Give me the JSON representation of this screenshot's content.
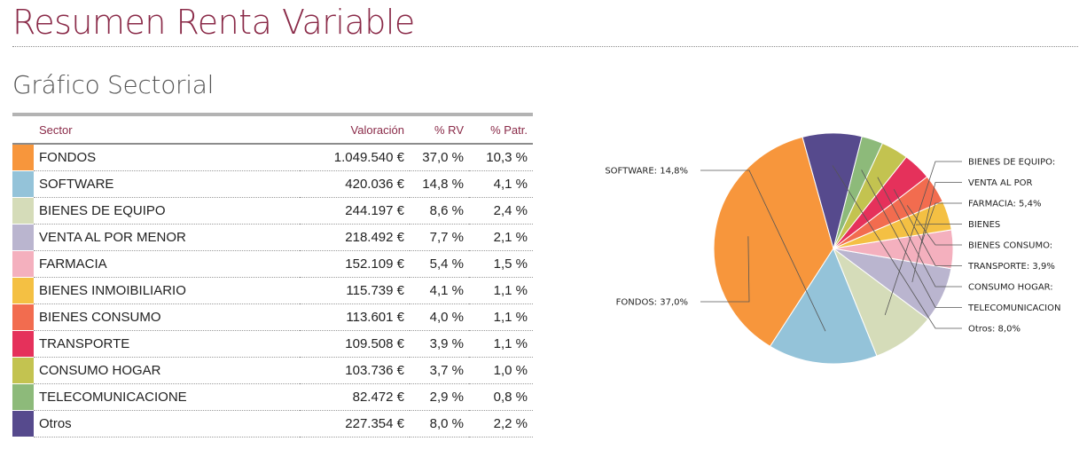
{
  "header": {
    "title": "Resumen Renta Variable",
    "subtitle": "Gráfico Sectorial"
  },
  "table": {
    "columns": [
      "Sector",
      "Valoración",
      "% RV",
      "% Patr."
    ],
    "rows": [
      {
        "sector": "FONDOS",
        "valoracion": "1.049.540 €",
        "rv": "37,0 %",
        "patr": "10,3 %",
        "color": "#f7963c"
      },
      {
        "sector": "SOFTWARE",
        "valoracion": "420.036 €",
        "rv": "14,8 %",
        "patr": "4,1 %",
        "color": "#94c3d9"
      },
      {
        "sector": "BIENES DE EQUIPO",
        "valoracion": "244.197 €",
        "rv": "8,6 %",
        "patr": "2,4 %",
        "color": "#d5dcb9"
      },
      {
        "sector": "VENTA AL POR MENOR",
        "valoracion": "218.492 €",
        "rv": "7,7 %",
        "patr": "2,1 %",
        "color": "#bab5cf"
      },
      {
        "sector": "FARMACIA",
        "valoracion": "152.109 €",
        "rv": "5,4 %",
        "patr": "1,5 %",
        "color": "#f4b0be"
      },
      {
        "sector": "BIENES INMOIBILIARIO",
        "valoracion": "115.739 €",
        "rv": "4,1 %",
        "patr": "1,1 %",
        "color": "#f4c043"
      },
      {
        "sector": "BIENES CONSUMO",
        "valoracion": "113.601 €",
        "rv": "4,0 %",
        "patr": "1,1 %",
        "color": "#f26c4f"
      },
      {
        "sector": "TRANSPORTE",
        "valoracion": "109.508 €",
        "rv": "3,9 %",
        "patr": "1,1 %",
        "color": "#e5315b"
      },
      {
        "sector": "CONSUMO HOGAR",
        "valoracion": "103.736 €",
        "rv": "3,7 %",
        "patr": "1,0 %",
        "color": "#c3c350"
      },
      {
        "sector": "TELECOMUNICACIONE",
        "valoracion": "82.472 €",
        "rv": "2,9 %",
        "patr": "0,8 %",
        "color": "#8dba7a"
      },
      {
        "sector": "Otros",
        "valoracion": "227.354 €",
        "rv": "8,0 %",
        "patr": "2,2 %",
        "color": "#564a8d"
      }
    ]
  },
  "chart_data": {
    "type": "pie",
    "title": "",
    "categories": [
      "FONDOS",
      "SOFTWARE",
      "BIENES DE EQUIPO",
      "VENTA AL POR MENOR",
      "FARMACIA",
      "BIENES INMOIBILIARIO",
      "BIENES CONSUMO",
      "TRANSPORTE",
      "CONSUMO HOGAR",
      "TELECOMUNICACIONE",
      "Otros"
    ],
    "values": [
      37.0,
      14.8,
      8.6,
      7.7,
      5.4,
      4.1,
      4.0,
      3.9,
      3.7,
      2.9,
      8.0
    ],
    "colors": [
      "#f7963c",
      "#94c3d9",
      "#d5dcb9",
      "#bab5cf",
      "#f4b0be",
      "#f4c043",
      "#f26c4f",
      "#e5315b",
      "#c3c350",
      "#8dba7a",
      "#564a8d"
    ],
    "labels": [
      {
        "index": 0,
        "text": "FONDOS: 37,0%",
        "side": "left"
      },
      {
        "index": 1,
        "text": "SOFTWARE: 14,8%",
        "side": "left"
      },
      {
        "index": 2,
        "text": "BIENES DE EQUIPO:",
        "side": "right"
      },
      {
        "index": 3,
        "text": "VENTA AL POR",
        "side": "right"
      },
      {
        "index": 4,
        "text": "FARMACIA: 5,4%",
        "side": "right"
      },
      {
        "index": 5,
        "text": "BIENES",
        "side": "right"
      },
      {
        "index": 6,
        "text": "BIENES CONSUMO:",
        "side": "right"
      },
      {
        "index": 7,
        "text": "TRANSPORTE: 3,9%",
        "side": "right"
      },
      {
        "index": 8,
        "text": "CONSUMO HOGAR:",
        "side": "right"
      },
      {
        "index": 9,
        "text": "TELECOMUNICACION",
        "side": "right"
      },
      {
        "index": 10,
        "text": "Otros: 8,0%",
        "side": "right"
      }
    ]
  }
}
